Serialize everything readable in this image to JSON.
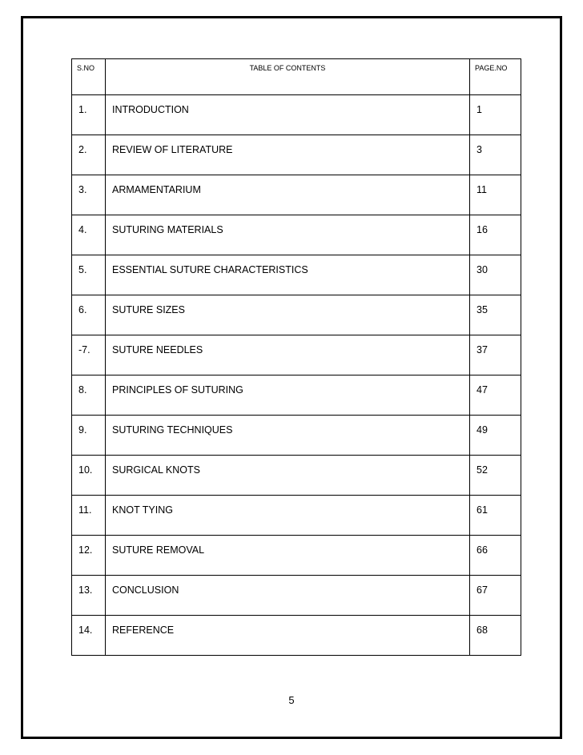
{
  "toc": {
    "header": {
      "sno": "S.NO",
      "title": "TABLE OF   CONTENTS",
      "page": "PAGE.NO"
    },
    "rows": [
      {
        "sno": "1.",
        "title": "INTRODUCTION",
        "page": "1"
      },
      {
        "sno": "2.",
        "title": "REVIEW OF LITERATURE",
        "page": "3"
      },
      {
        "sno": "3.",
        "title": "ARMAMENTARIUM",
        "page": "11"
      },
      {
        "sno": "4.",
        "title": "SUTURING MATERIALS",
        "page": "16"
      },
      {
        "sno": "5.",
        "title": "ESSENTIAL SUTURE CHARACTERISTICS",
        "page": "30"
      },
      {
        "sno": "6.",
        "title": "SUTURE SIZES",
        "page": "35"
      },
      {
        "sno": "-7.",
        "title": "SUTURE NEEDLES",
        "page": "37"
      },
      {
        "sno": "8.",
        "title": "PRINCIPLES OF SUTURING",
        "page": "47"
      },
      {
        "sno": "9.",
        "title": "SUTURING TECHNIQUES",
        "page": "49"
      },
      {
        "sno": "10.",
        "title": "SURGICAL KNOTS",
        "page": "52"
      },
      {
        "sno": "11.",
        "title": "KNOT TYING",
        "page": "61"
      },
      {
        "sno": "12.",
        "title": "SUTURE REMOVAL",
        "page": "66"
      },
      {
        "sno": "13.",
        "title": "CONCLUSION",
        "page": "67"
      },
      {
        "sno": "14.",
        "title": "REFERENCE",
        "page": "68"
      }
    ]
  },
  "footer": {
    "page_number": "5"
  }
}
